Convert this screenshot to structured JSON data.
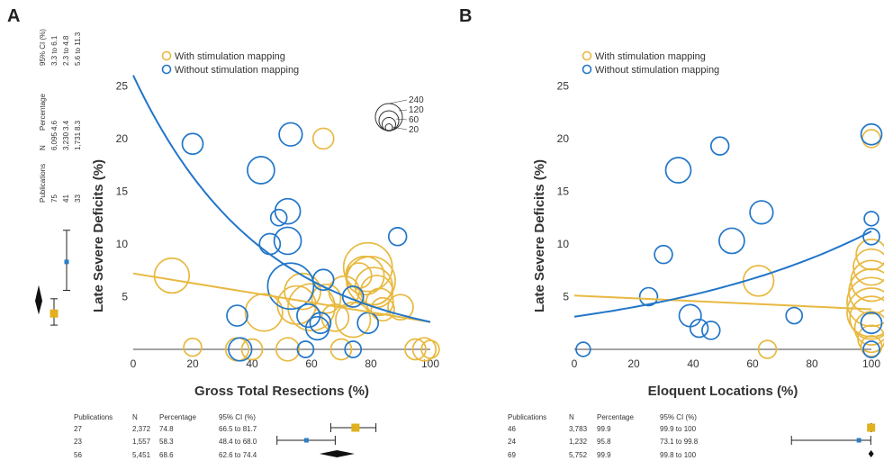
{
  "colors": {
    "with_mapping": "#e8b940",
    "without_mapping": "#2276c9",
    "summary_with": "#e0b01e",
    "summary_without": "#2a7fc8",
    "pooled": "#111111"
  },
  "legend": {
    "with_label": "With stimulation mapping",
    "without_label": "Without stimulation mapping"
  },
  "size_legend": {
    "values": [
      "240",
      "120",
      "60",
      "20"
    ]
  },
  "chart_data": [
    {
      "type": "scatter",
      "panel": "A",
      "xlabel": "Gross Total Resections (%)",
      "ylabel": "Late Severe Deficits (%)",
      "xlim": [
        0,
        100
      ],
      "ylim": [
        0,
        27
      ],
      "xticks": [
        "0",
        "20",
        "40",
        "60",
        "80",
        "100"
      ],
      "yticks": [
        "5",
        "10",
        "15",
        "20",
        "25"
      ],
      "series": [
        {
          "key": "with",
          "points": [
            [
              13,
              7,
              110
            ],
            [
              20,
              0.2,
              20
            ],
            [
              35,
              0,
              40
            ],
            [
              40,
              0,
              30
            ],
            [
              44,
              3.5,
              130
            ],
            [
              52,
              0,
              40
            ],
            [
              55,
              4.2,
              140
            ],
            [
              57,
              5.5,
              120
            ],
            [
              60,
              4,
              220
            ],
            [
              64,
              20,
              30
            ],
            [
              65,
              4.8,
              70
            ],
            [
              68,
              3,
              60
            ],
            [
              70,
              0,
              30
            ],
            [
              71,
              5.5,
              80
            ],
            [
              74,
              2.8,
              110
            ],
            [
              76,
              7,
              50
            ],
            [
              78,
              7,
              140
            ],
            [
              79,
              7.8,
              240
            ],
            [
              80,
              6.5,
              240
            ],
            [
              81,
              6,
              130
            ],
            [
              82,
              5.5,
              90
            ],
            [
              83,
              4.5,
              60
            ],
            [
              84,
              3.8,
              40
            ],
            [
              90,
              4,
              50
            ],
            [
              95,
              0,
              30
            ],
            [
              98,
              0,
              40
            ],
            [
              100,
              0,
              20
            ]
          ],
          "fit": [
            [
              0,
              7.2
            ],
            [
              100,
              2.6
            ]
          ]
        },
        {
          "key": "without",
          "points": [
            [
              20,
              19.5,
              30
            ],
            [
              35,
              3.2,
              30
            ],
            [
              36,
              0,
              40
            ],
            [
              43,
              17,
              60
            ],
            [
              46,
              10,
              30
            ],
            [
              49,
              12.5,
              15
            ],
            [
              52,
              10.3,
              60
            ],
            [
              52,
              13.1,
              50
            ],
            [
              53,
              20.4,
              40
            ],
            [
              53,
              6,
              210
            ],
            [
              58,
              0,
              15
            ],
            [
              59,
              3.2,
              40
            ],
            [
              62,
              2,
              40
            ],
            [
              63,
              2.5,
              30
            ],
            [
              64,
              6.6,
              30
            ],
            [
              74,
              0,
              15
            ],
            [
              74,
              5,
              30
            ],
            [
              79,
              2.5,
              30
            ],
            [
              89,
              10.7,
              20
            ]
          ],
          "fit_curve": "exponential",
          "fit": [
            [
              0,
              26
            ],
            [
              20,
              17.4
            ],
            [
              40,
              11.3
            ],
            [
              60,
              7
            ],
            [
              80,
              4.4
            ],
            [
              100,
              2.6
            ]
          ]
        }
      ],
      "summary_table": {
        "headers": [
          "Publications",
          "N",
          "Percentage",
          "95% CI (%)"
        ],
        "rows": [
          [
            "27",
            "2,372",
            "74.8",
            "66.5 to 81.7"
          ],
          [
            "23",
            "1,557",
            "58.3",
            "48.4 to 68.0"
          ],
          [
            "56",
            "5,451",
            "68.6",
            "62.6 to 74.4"
          ]
        ],
        "estimates": [
          [
            74.8,
            66.5,
            81.7
          ],
          [
            58.3,
            48.4,
            68.0
          ],
          [
            68.6,
            62.6,
            74.4
          ]
        ]
      },
      "side_table": {
        "headers": [
          "Publications",
          "N",
          "Percentage",
          "95% CI (%)"
        ],
        "rows": [
          [
            "75",
            "6,095",
            "4.6",
            "3.3 to 6.1"
          ],
          [
            "41",
            "3,230",
            "3.4",
            "2.3 to 4.8"
          ],
          [
            "33",
            "1,731",
            "8.3",
            "5.6 to 11.3"
          ]
        ],
        "estimates": [
          [
            3.4,
            2.3,
            4.8
          ],
          [
            8.3,
            5.6,
            11.3
          ],
          [
            4.6,
            3.3,
            6.1
          ]
        ]
      }
    },
    {
      "type": "scatter",
      "panel": "B",
      "xlabel": "Eloquent Locations (%)",
      "ylabel": "Late Severe Deficits (%)",
      "xlim": [
        0,
        100
      ],
      "ylim": [
        0,
        27
      ],
      "xticks": [
        "0",
        "20",
        "40",
        "60",
        "80",
        "100"
      ],
      "yticks": [
        "5",
        "10",
        "15",
        "20",
        "25"
      ],
      "series": [
        {
          "key": "with",
          "points": [
            [
              62,
              6.5,
              80
            ],
            [
              65,
              0,
              20
            ],
            [
              100,
              20,
              20
            ],
            [
              100,
              9,
              80
            ],
            [
              100,
              7.8,
              120
            ],
            [
              100,
              6.5,
              160
            ],
            [
              100,
              5.5,
              200
            ],
            [
              100,
              4.5,
              240
            ],
            [
              100,
              3.5,
              240
            ],
            [
              100,
              3,
              180
            ],
            [
              100,
              2,
              100
            ],
            [
              100,
              1,
              60
            ],
            [
              100,
              0.3,
              30
            ]
          ],
          "fit": [
            [
              0,
              5.1
            ],
            [
              100,
              3.8
            ]
          ]
        },
        {
          "key": "without",
          "points": [
            [
              3,
              0,
              10
            ],
            [
              25,
              5,
              20
            ],
            [
              30,
              9,
              20
            ],
            [
              35,
              17,
              50
            ],
            [
              39,
              3.2,
              35
            ],
            [
              42,
              2,
              20
            ],
            [
              46,
              1.8,
              20
            ],
            [
              49,
              19.3,
              20
            ],
            [
              53,
              10.3,
              50
            ],
            [
              63,
              13,
              40
            ],
            [
              74,
              3.2,
              15
            ],
            [
              100,
              20.4,
              30
            ],
            [
              100,
              12.4,
              10
            ],
            [
              100,
              10.7,
              15
            ],
            [
              100,
              2.5,
              30
            ],
            [
              100,
              0,
              15
            ]
          ],
          "fit": [
            [
              0,
              3.1
            ],
            [
              100,
              11.2
            ]
          ]
        }
      ],
      "summary_table": {
        "headers": [
          "Publications",
          "N",
          "Percentage",
          "95% CI (%)"
        ],
        "rows": [
          [
            "46",
            "3,783",
            "99.9",
            "99.9 to 100"
          ],
          [
            "24",
            "1,232",
            "95.8",
            "73.1 to 99.8"
          ],
          [
            "69",
            "5,752",
            "99.9",
            "99.8 to 100"
          ]
        ],
        "estimates": [
          [
            99.9,
            99.9,
            100
          ],
          [
            95.8,
            73.1,
            99.8
          ],
          [
            99.9,
            99.8,
            100
          ]
        ]
      }
    }
  ]
}
